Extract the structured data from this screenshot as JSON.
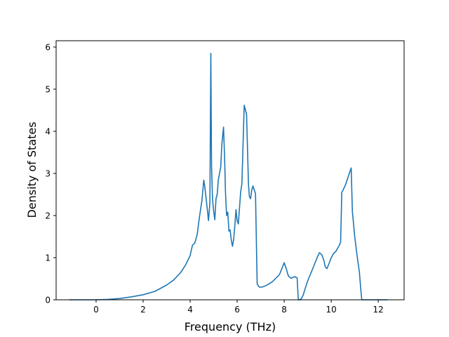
{
  "chart_data": {
    "type": "line",
    "xlabel": "Frequency (THz)",
    "ylabel": "Density of States",
    "xlim": [
      -1.7,
      13.1
    ],
    "ylim": [
      0,
      6.15
    ],
    "grid": false,
    "line_color": "#1f77b4",
    "x_ticks": [
      {
        "value": 0,
        "label": "0"
      },
      {
        "value": 2,
        "label": "2"
      },
      {
        "value": 4,
        "label": "4"
      },
      {
        "value": 6,
        "label": "6"
      },
      {
        "value": 8,
        "label": "8"
      },
      {
        "value": 10,
        "label": "10"
      },
      {
        "value": 12,
        "label": "12"
      }
    ],
    "y_ticks": [
      {
        "value": 0,
        "label": "0"
      },
      {
        "value": 1,
        "label": "1"
      },
      {
        "value": 2,
        "label": "2"
      },
      {
        "value": 3,
        "label": "3"
      },
      {
        "value": 4,
        "label": "4"
      },
      {
        "value": 5,
        "label": "5"
      },
      {
        "value": 6,
        "label": "6"
      }
    ],
    "series": [
      {
        "x": [
          -1.15,
          -0.5,
          0.0,
          0.5,
          1.0,
          1.5,
          2.0,
          2.5,
          3.0,
          3.3,
          3.6,
          3.8,
          4.0,
          4.1,
          4.15,
          4.2,
          4.3,
          4.4,
          4.5,
          4.58,
          4.62,
          4.7,
          4.78,
          4.84,
          4.88,
          4.91,
          4.95,
          5.0,
          5.05,
          5.1,
          5.15,
          5.2,
          5.3,
          5.35,
          5.42,
          5.47,
          5.5,
          5.55,
          5.6,
          5.65,
          5.7,
          5.75,
          5.8,
          5.85,
          5.9,
          5.95,
          6.0,
          6.05,
          6.15,
          6.2,
          6.3,
          6.4,
          6.48,
          6.52,
          6.57,
          6.62,
          6.67,
          6.72,
          6.78,
          6.85,
          6.9,
          6.95,
          7.05,
          7.1,
          7.2,
          7.3,
          7.5,
          7.8,
          8.0,
          8.1,
          8.15,
          8.2,
          8.3,
          8.45,
          8.55,
          8.6,
          8.65,
          8.72,
          8.8,
          8.9,
          9.0,
          9.2,
          9.4,
          9.5,
          9.6,
          9.68,
          9.75,
          9.82,
          9.9,
          10.0,
          10.1,
          10.2,
          10.3,
          10.35,
          10.4,
          10.45,
          10.5,
          10.6,
          10.7,
          10.8,
          10.85,
          10.9,
          11.0,
          11.1,
          11.2,
          11.25,
          11.3,
          11.5,
          12.0,
          12.4
        ],
        "values": [
          0,
          0,
          0,
          0.01,
          0.03,
          0.07,
          0.12,
          0.2,
          0.35,
          0.47,
          0.65,
          0.82,
          1.05,
          1.3,
          1.32,
          1.35,
          1.55,
          1.98,
          2.35,
          2.84,
          2.7,
          2.3,
          1.88,
          2.3,
          5.85,
          3.2,
          2.4,
          2.1,
          1.9,
          2.4,
          2.5,
          2.85,
          3.15,
          3.7,
          4.1,
          3.3,
          2.6,
          2.0,
          2.08,
          1.63,
          1.66,
          1.42,
          1.27,
          1.43,
          1.75,
          2.14,
          1.87,
          1.8,
          2.57,
          2.75,
          4.62,
          4.4,
          2.75,
          2.45,
          2.4,
          2.6,
          2.7,
          2.62,
          2.52,
          0.38,
          0.33,
          0.3,
          0.3,
          0.31,
          0.33,
          0.36,
          0.43,
          0.6,
          0.88,
          0.72,
          0.61,
          0.55,
          0.51,
          0.55,
          0.52,
          0.0,
          0.0,
          0.02,
          0.1,
          0.28,
          0.45,
          0.72,
          1.0,
          1.12,
          1.07,
          0.95,
          0.78,
          0.74,
          0.85,
          1.0,
          1.1,
          1.15,
          1.25,
          1.3,
          1.37,
          2.55,
          2.6,
          2.72,
          2.88,
          3.05,
          3.13,
          2.1,
          1.5,
          1.05,
          0.65,
          0.3,
          0.0,
          0,
          0,
          0
        ]
      }
    ]
  }
}
